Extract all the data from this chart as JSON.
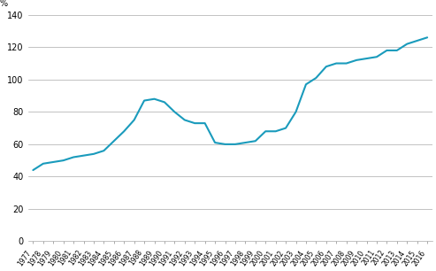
{
  "years": [
    1977,
    1978,
    1979,
    1980,
    1981,
    1982,
    1983,
    1984,
    1985,
    1986,
    1987,
    1988,
    1989,
    1990,
    1991,
    1992,
    1993,
    1994,
    1995,
    1996,
    1997,
    1998,
    1999,
    2000,
    2001,
    2002,
    2003,
    2004,
    2005,
    2006,
    2007,
    2008,
    2009,
    2010,
    2011,
    2012,
    2013,
    2014,
    2015,
    2016
  ],
  "values": [
    44,
    48,
    49,
    50,
    52,
    53,
    54,
    56,
    62,
    68,
    75,
    87,
    88,
    86,
    80,
    75,
    73,
    73,
    61,
    60,
    60,
    61,
    62,
    68,
    68,
    70,
    80,
    97,
    101,
    108,
    110,
    110,
    112,
    113,
    114,
    118,
    118,
    122,
    124,
    126
  ],
  "line_color": "#1a9bbc",
  "line_width": 1.5,
  "ylim": [
    0,
    140
  ],
  "yticks": [
    0,
    20,
    40,
    60,
    80,
    100,
    120,
    140
  ],
  "ylabel": "%",
  "background_color": "#ffffff",
  "grid_color": "#aaaaaa",
  "grid_linewidth": 0.5,
  "tick_fontsize": 5.5,
  "ylabel_fontsize": 7,
  "ytick_fontsize": 7
}
